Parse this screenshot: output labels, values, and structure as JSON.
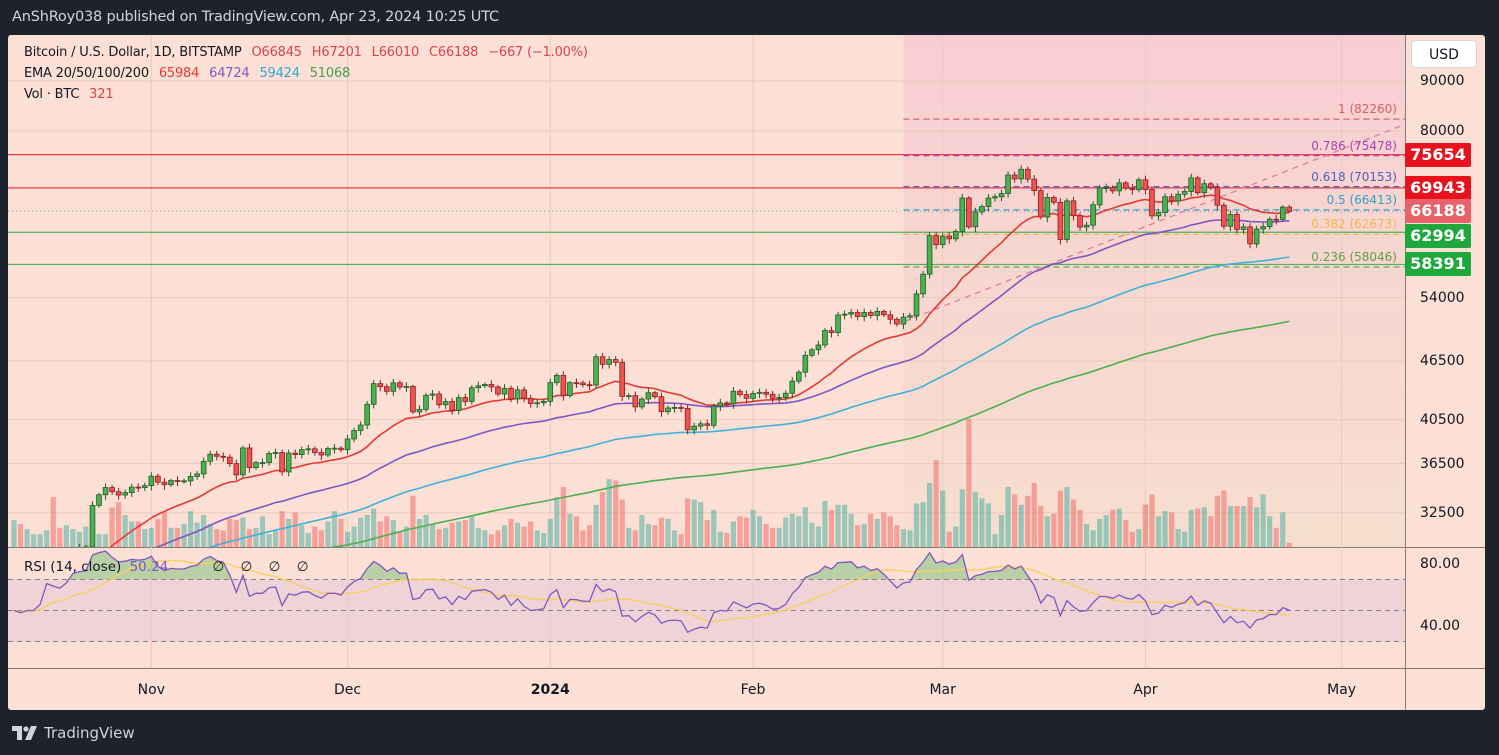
{
  "published": "AnShRoy038 published on TradingView.com, Apr 23, 2024 10:25 UTC",
  "legend": {
    "symbol": "Bitcoin / U.S. Dollar, 1D, BITSTAMP",
    "open": "O66845",
    "high": "H67201",
    "low": "L66010",
    "close": "C66188",
    "change": "−667 (−1.00%)",
    "ema_label": "EMA 20/50/100/200",
    "ema20": "65984",
    "ema50": "64724",
    "ema100": "59424",
    "ema200": "51068",
    "vol_label": "Vol · BTC",
    "vol_value": "321"
  },
  "rsi_legend": {
    "label": "RSI (14, close)",
    "value": "50.24",
    "extras": "∅ ∅ ∅ ∅"
  },
  "currency_button": "USD",
  "footer_brand": "TradingView",
  "colors": {
    "up": "#4caf50",
    "down": "#ef5350",
    "ema20": "#e53935",
    "ema50": "#7e57c2",
    "ema100": "#3fb1d9",
    "ema200": "#4caf50",
    "rsi": "#7e57c2",
    "rsi_ma": "#f5d05a",
    "bg": "#fde0d5"
  },
  "chart_data": {
    "type": "candlestick",
    "title": "Bitcoin / U.S. Dollar, 1D, BITSTAMP",
    "start_date": "2023-10-11",
    "y_scale": "log",
    "ylim": [
      30000,
      90000
    ],
    "current_bar": {
      "open": 66845,
      "high": 67201,
      "low": 66010,
      "close": 66188
    },
    "closes": [
      26870,
      26750,
      26860,
      26860,
      27150,
      28520,
      28410,
      28330,
      28720,
      29680,
      29920,
      29990,
      33080,
      33920,
      34500,
      34160,
      33900,
      34090,
      34540,
      34500,
      34660,
      35440,
      34940,
      34730,
      35080,
      35050,
      35050,
      35420,
      35630,
      36700,
      37320,
      37140,
      37070,
      36500,
      35550,
      37880,
      36160,
      36590,
      36590,
      37380,
      37470,
      35800,
      37420,
      37290,
      37720,
      37800,
      37470,
      37250,
      37830,
      37860,
      37720,
      38690,
      39470,
      39980,
      41990,
      44080,
      43770,
      43290,
      44170,
      43730,
      43790,
      41240,
      41480,
      42890,
      43020,
      41940,
      42260,
      41370,
      42660,
      42270,
      43660,
      43860,
      43990,
      43740,
      43010,
      43600,
      42520,
      43440,
      42580,
      42070,
      42140,
      42280,
      44180,
      44950,
      42850,
      44180,
      44160,
      43970,
      43930,
      46970,
      46130,
      46660,
      46350,
      42780,
      42850,
      41730,
      42510,
      43150,
      42740,
      41260,
      41620,
      41680,
      41580,
      39530,
      39880,
      40100,
      39950,
      41810,
      42120,
      42030,
      43300,
      42950,
      42580,
      43080,
      43190,
      42990,
      42580,
      42660,
      43090,
      44340,
      45290,
      47130,
      47750,
      48290,
      49960,
      49720,
      51830,
      51930,
      52130,
      51640,
      52130,
      51780,
      52270,
      51850,
      51310,
      50730,
      51570,
      51730,
      54480,
      57060,
      62500,
      61180,
      62430,
      62030,
      63130,
      68300,
      63800,
      66100,
      66930,
      68300,
      68500,
      69020,
      72100,
      71450,
      73080,
      71400,
      69500,
      65300,
      68390,
      67610,
      61930,
      67840,
      65500,
      63780,
      64050,
      67210,
      69960,
      69990,
      69450,
      70780,
      69890,
      69650,
      71300,
      69670,
      65480,
      65990,
      68500,
      67840,
      68900,
      69360,
      71620,
      69150,
      70630,
      70000,
      67150,
      63900,
      65700,
      63420,
      63800,
      61290,
      63480,
      63830,
      64960,
      64940,
      66850,
      66188
    ],
    "volumes": [
      2100,
      1800,
      1400,
      1000,
      1000,
      1300,
      3900,
      1500,
      1700,
      1400,
      1200,
      1600,
      2300,
      1000,
      1000,
      3100,
      3500,
      2500,
      2000,
      2000,
      1400,
      1500,
      2200,
      2700,
      1500,
      1500,
      1800,
      2800,
      1900,
      2500,
      1800,
      1400,
      1300,
      2200,
      2100,
      2300,
      1400,
      1500,
      2400,
      1000,
      1300,
      2800,
      2200,
      2700,
      1700,
      1100,
      1600,
      1300,
      2000,
      2800,
      2200,
      1200,
      1600,
      2300,
      2500,
      3000,
      2000,
      2400,
      2100,
      1200,
      1600,
      4000,
      2200,
      2500,
      1800,
      1400,
      1500,
      1900,
      2000,
      2100,
      2400,
      1500,
      1300,
      1000,
      1300,
      1700,
      2200,
      1900,
      1600,
      2000,
      1300,
      1100,
      2200,
      3900,
      4700,
      2600,
      2400,
      1300,
      1700,
      3300,
      4300,
      5300,
      5200,
      3700,
      1500,
      1300,
      2500,
      1800,
      1700,
      2300,
      2200,
      1300,
      1000,
      3800,
      3700,
      3500,
      2100,
      2900,
      1200,
      1100,
      2000,
      2400,
      2300,
      2900,
      2400,
      1800,
      1500,
      1500,
      2300,
      2600,
      2400,
      3100,
      1900,
      1600,
      3600,
      2900,
      3300,
      3300,
      2600,
      1700,
      1800,
      2600,
      2200,
      2700,
      2400,
      1700,
      1400,
      1300,
      3400,
      3500,
      5000,
      6800,
      4400,
      1200,
      1600,
      4500,
      10000,
      4300,
      3800,
      3400,
      1000,
      2500,
      4700,
      4100,
      3300,
      4000,
      5000,
      3200,
      2400,
      2600,
      4400,
      4700,
      3700,
      2900,
      1800,
      1300,
      2200,
      2500,
      2900,
      3000,
      2100,
      1200,
      1400,
      3300,
      4100,
      2400,
      2800,
      2700,
      1400,
      1200,
      2900,
      3000,
      3100,
      2400,
      4000,
      4400,
      3200,
      3200,
      3200,
      3900,
      3100,
      4100,
      2400,
      1500,
      2700,
      321
    ],
    "ema_seeds": {
      "ema20": 27200,
      "ema50": 27100,
      "ema100": 27500,
      "ema200": 27000
    },
    "rsi": {
      "period": 14,
      "ma_period": 14,
      "last_value": 50.24,
      "levels": [
        70,
        50,
        30
      ],
      "ylim": [
        12.9,
        90.3
      ]
    },
    "price_ticks": [
      "90000",
      "80000",
      "54000",
      "46500",
      "40500",
      "36500",
      "32500"
    ],
    "rsi_ticks": [
      "80.00",
      "40.00"
    ],
    "time_ticks": [
      {
        "label": "Nov",
        "date": "2023-11-01"
      },
      {
        "label": "Dec",
        "date": "2023-12-01"
      },
      {
        "label": "2024",
        "date": "2024-01-01"
      },
      {
        "label": "Feb",
        "date": "2024-02-01"
      },
      {
        "label": "Mar",
        "date": "2024-03-01"
      },
      {
        "label": "Apr",
        "date": "2024-04-01"
      },
      {
        "label": "May",
        "date": "2024-05-01"
      }
    ],
    "horizontal_levels": [
      {
        "price": 75654,
        "label": "75654",
        "color": "#e8121c"
      },
      {
        "price": 69943,
        "label": "69943",
        "color": "#e8121c"
      },
      {
        "price": 62994,
        "label": "62994",
        "color": "#1ea83c"
      },
      {
        "price": 58391,
        "label": "58391",
        "color": "#1ea83c"
      }
    ],
    "last_price": {
      "price": 66188,
      "label": "66188",
      "color": "#e8626a"
    },
    "fib_start_date": "2024-02-24",
    "fib_levels": [
      {
        "ratio": "1",
        "price": 82260,
        "label": "1 (82260)",
        "color": "#d9606a"
      },
      {
        "ratio": "0.786",
        "price": 75478,
        "label": "0.786 (75478)",
        "color": "#a244b8"
      },
      {
        "ratio": "0.618",
        "price": 70153,
        "label": "0.618 (70153)",
        "color": "#5060c0"
      },
      {
        "ratio": "0.5",
        "price": 66413,
        "label": "0.5 (66413)",
        "color": "#2ba3c8"
      },
      {
        "ratio": "0.382",
        "price": 62673,
        "label": "0.382 (62673)",
        "color": "#f2b54a"
      },
      {
        "ratio": "0.236",
        "price": 58046,
        "label": "0.236 (58046)",
        "color": "#5f9e4a"
      }
    ],
    "trendline": {
      "start": {
        "date": "2024-02-24",
        "price": 51000
      },
      "end": {
        "date": "2024-05-13",
        "price": 82400
      }
    }
  }
}
